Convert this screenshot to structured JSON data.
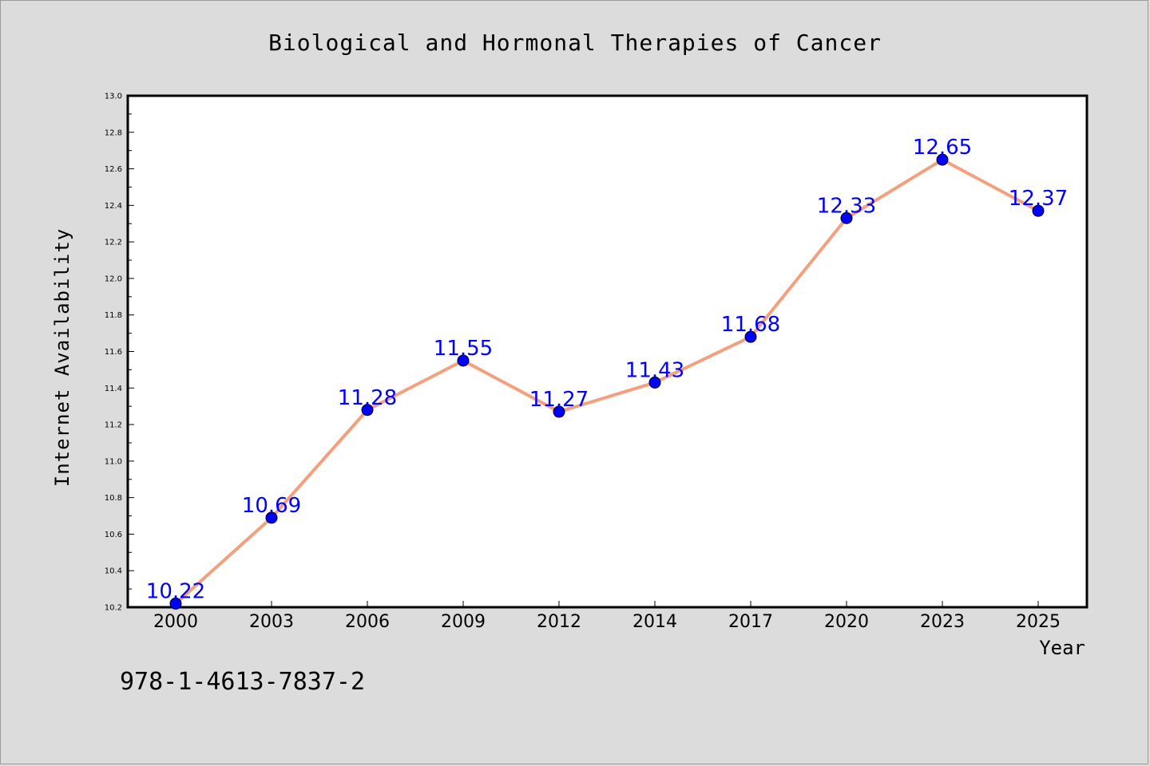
{
  "chart_data": {
    "type": "line",
    "title": "Biological and Hormonal Therapies of Cancer",
    "xlabel": "Year",
    "ylabel": "Internet Availability",
    "categories": [
      "2000",
      "2003",
      "2006",
      "2009",
      "2012",
      "2014",
      "2017",
      "2020",
      "2023",
      "2025"
    ],
    "series": [
      {
        "values": [
          10.22,
          10.69,
          11.28,
          11.55,
          11.27,
          11.43,
          11.68,
          12.33,
          12.65,
          12.37
        ]
      }
    ],
    "data_labels": [
      "10.22",
      "10.69",
      "11.28",
      "11.55",
      "11.27",
      "11.43",
      "11.68",
      "12.33",
      "12.65",
      "12.37"
    ],
    "ylim": [
      10.2,
      13.0
    ],
    "yticks": [
      "10.2",
      "10.4",
      "10.6",
      "10.8",
      "11.0",
      "11.2",
      "11.4",
      "11.6",
      "11.8",
      "12.0",
      "12.2",
      "12.4",
      "12.6",
      "12.8",
      "13.0"
    ],
    "grid": false,
    "line_color": "#f4a07e",
    "marker_color": "#0000ff",
    "label_color": "#0000ff",
    "background_color": "#dcdcdc",
    "plot_background_color": "#ffffff"
  },
  "annotation": "978-1-4613-7837-2"
}
